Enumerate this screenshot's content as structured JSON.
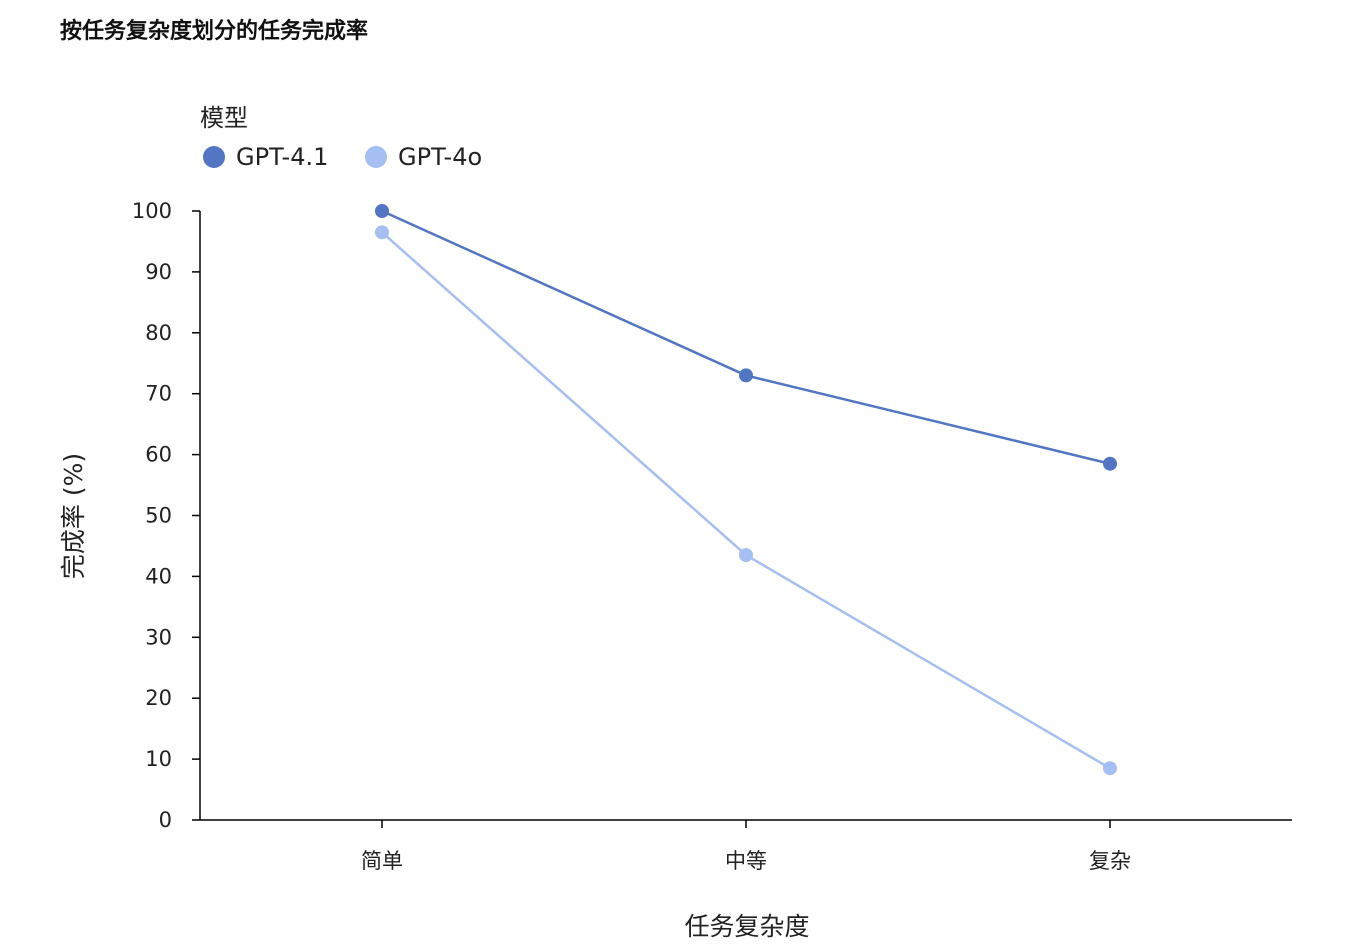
{
  "chart_data": {
    "type": "line",
    "title": "按任务复杂度划分的任务完成率",
    "xlabel": "任务复杂度",
    "ylabel": "完成率 (%)",
    "categories": [
      "简单",
      "中等",
      "复杂"
    ],
    "ylim": [
      0,
      100
    ],
    "yticks": [
      0,
      10,
      20,
      30,
      40,
      50,
      60,
      70,
      80,
      90,
      100
    ],
    "grid": false,
    "legend": {
      "title": "模型",
      "placement": "top-left"
    },
    "series": [
      {
        "name": "GPT-4.1",
        "values": [
          100,
          73,
          58.5
        ],
        "color": "#5275c4"
      },
      {
        "name": "GPT-4o",
        "values": [
          96.5,
          43.5,
          8.5
        ],
        "color": "#a5bff2"
      }
    ]
  }
}
